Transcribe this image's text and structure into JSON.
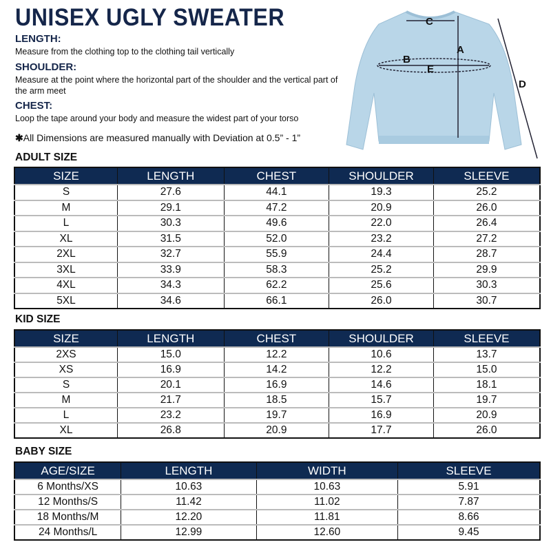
{
  "title": "UNISEX UGLY SWEATER",
  "definitions": [
    {
      "term": "LENGTH:",
      "text": "Measure from the clothing top to the clothing tail vertically"
    },
    {
      "term": "SHOULDER:",
      "text": "Measure at the point where the horizontal part of the shoulder and the vertical part of the arm meet"
    },
    {
      "term": "CHEST:",
      "text": "Loop the tape around your body and measure the widest part of your torso"
    }
  ],
  "note": "All Dimensions are measured manually with Deviation at 0.5” - 1”",
  "note_marker": "✱",
  "diagram": {
    "labels": [
      "A",
      "B",
      "C",
      "D",
      "E"
    ],
    "garment_color": "#b9d6e8"
  },
  "colors": {
    "header_bg": "#0f2a52",
    "title": "#15264a"
  },
  "adult": {
    "label": "ADULT SIZE",
    "headers": [
      "SIZE",
      "LENGTH",
      "CHEST",
      "SHOULDER",
      "SLEEVE"
    ],
    "rows": [
      [
        "S",
        "27.6",
        "44.1",
        "19.3",
        "25.2"
      ],
      [
        "M",
        "29.1",
        "47.2",
        "20.9",
        "26.0"
      ],
      [
        "L",
        "30.3",
        "49.6",
        "22.0",
        "26.4"
      ],
      [
        "XL",
        "31.5",
        "52.0",
        "23.2",
        "27.2"
      ],
      [
        "2XL",
        "32.7",
        "55.9",
        "24.4",
        "28.7"
      ],
      [
        "3XL",
        "33.9",
        "58.3",
        "25.2",
        "29.9"
      ],
      [
        "4XL",
        "34.3",
        "62.2",
        "25.6",
        "30.3"
      ],
      [
        "5XL",
        "34.6",
        "66.1",
        "26.0",
        "30.7"
      ]
    ]
  },
  "kid": {
    "label": "KID SIZE",
    "headers": [
      "SIZE",
      "LENGTH",
      "CHEST",
      "SHOULDER",
      "SLEEVE"
    ],
    "rows": [
      [
        "2XS",
        "15.0",
        "12.2",
        "10.6",
        "13.7"
      ],
      [
        "XS",
        "16.9",
        "14.2",
        "12.2",
        "15.0"
      ],
      [
        "S",
        "20.1",
        "16.9",
        "14.6",
        "18.1"
      ],
      [
        "M",
        "21.7",
        "18.5",
        "15.7",
        "19.7"
      ],
      [
        "L",
        "23.2",
        "19.7",
        "16.9",
        "20.9"
      ],
      [
        "XL",
        "26.8",
        "20.9",
        "17.7",
        "26.0"
      ]
    ]
  },
  "baby": {
    "label": "BABY SIZE",
    "headers": [
      "AGE/SIZE",
      "LENGTH",
      "WIDTH",
      "SLEEVE"
    ],
    "rows": [
      [
        "6 Months/XS",
        "10.63",
        "10.63",
        "5.91"
      ],
      [
        "12 Months/S",
        "11.42",
        "11.02",
        "7.87"
      ],
      [
        "18 Months/M",
        "12.20",
        "11.81",
        "8.66"
      ],
      [
        "24 Months/L",
        "12.99",
        "12.60",
        "9.45"
      ]
    ]
  }
}
